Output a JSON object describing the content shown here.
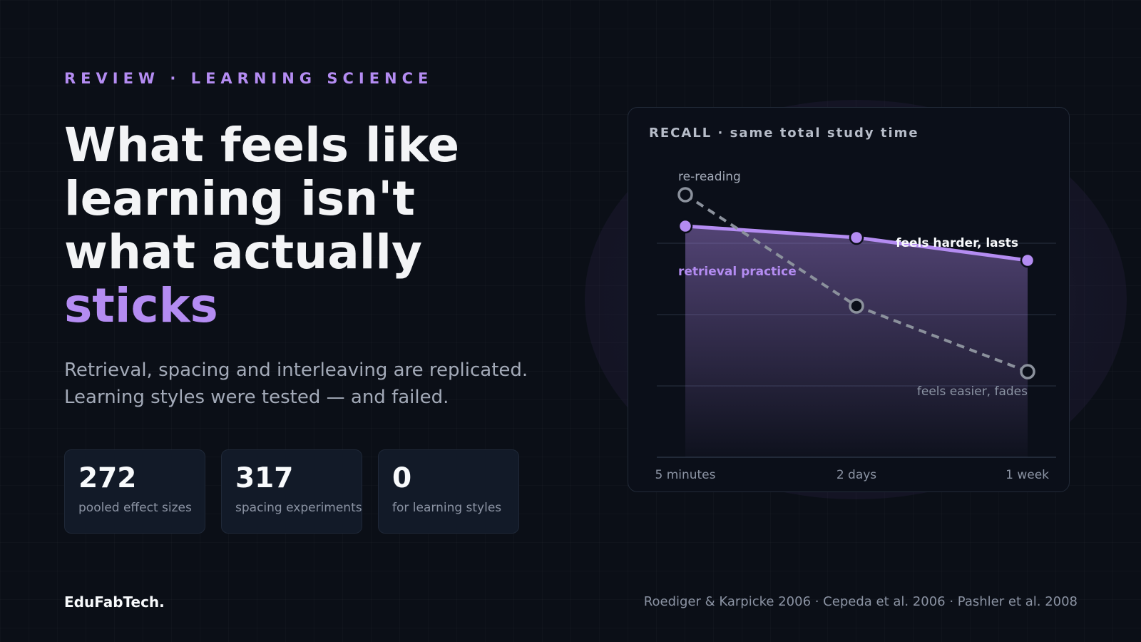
{
  "kicker": "REVIEW · LEARNING SCIENCE",
  "headline": {
    "line1": "What feels like",
    "line2": "learning isn't",
    "line3": "what actually",
    "accent": "sticks"
  },
  "subtitle": {
    "line1": "Retrieval, spacing and interleaving are replicated.",
    "line2": "Learning styles were tested — and failed."
  },
  "stats": [
    {
      "value": "272",
      "label": "pooled effect sizes"
    },
    {
      "value": "317",
      "label": "spacing experiments"
    },
    {
      "value": "0",
      "label": "for learning styles"
    }
  ],
  "brand": "EduFabTech.",
  "references": "Roediger & Karpicke 2006 · Cepeda et al. 2006 · Pashler et al. 2008",
  "colors": {
    "accent": "#b48cf2",
    "rereading": "#8b919c",
    "background": "#0b0f17"
  },
  "chart_data": {
    "type": "line",
    "title": "RECALL · same total study time",
    "categories": [
      "5 minutes",
      "2 days",
      "1 week"
    ],
    "series": [
      {
        "name": "re-reading",
        "values": [
          92,
          53,
          30
        ],
        "style": "dashed",
        "marker": "hollow",
        "color": "#8b919c",
        "note": "feels easier, fades"
      },
      {
        "name": "retrieval practice",
        "values": [
          81,
          77,
          69
        ],
        "style": "solid",
        "marker": "filled",
        "area": true,
        "color": "#b48cf2",
        "note": "feels harder, lasts"
      }
    ],
    "ylim": [
      0,
      100
    ],
    "grid": true,
    "legend": "inline"
  }
}
